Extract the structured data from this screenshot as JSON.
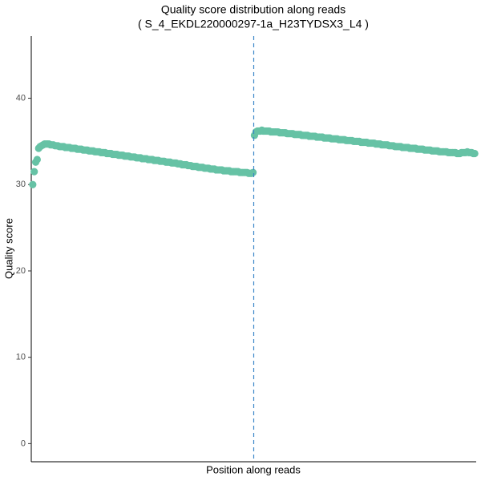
{
  "chart_data": {
    "type": "scatter",
    "title": "Quality score distribution along reads",
    "subtitle": "( S_4_EKDL220000297-1a_H23TYDSX3_L4 )",
    "x_label": "Position along reads",
    "y_label": "Quality score",
    "xlim": [
      0,
      301
    ],
    "ylim": [
      -2.1,
      47.2
    ],
    "yticks": [
      0,
      10,
      20,
      30,
      40
    ],
    "vline": 150.5,
    "vline_color": "#3a86c8",
    "grid": false,
    "series": [
      {
        "color": "#66c2a5",
        "x": [
          1,
          2,
          3,
          4,
          5,
          6,
          7,
          8,
          9,
          10,
          11,
          12,
          13,
          14,
          15,
          16,
          17,
          18,
          19,
          20,
          21,
          22,
          23,
          24,
          25,
          26,
          27,
          28,
          29,
          30,
          31,
          32,
          33,
          34,
          35,
          36,
          37,
          38,
          39,
          40,
          41,
          42,
          43,
          44,
          45,
          46,
          47,
          48,
          49,
          50,
          51,
          52,
          53,
          54,
          55,
          56,
          57,
          58,
          59,
          60,
          61,
          62,
          63,
          64,
          65,
          66,
          67,
          68,
          69,
          70,
          71,
          72,
          73,
          74,
          75,
          76,
          77,
          78,
          79,
          80,
          81,
          82,
          83,
          84,
          85,
          86,
          87,
          88,
          89,
          90,
          91,
          92,
          93,
          94,
          95,
          96,
          97,
          98,
          99,
          100,
          101,
          102,
          103,
          104,
          105,
          106,
          107,
          108,
          109,
          110,
          111,
          112,
          113,
          114,
          115,
          116,
          117,
          118,
          119,
          120,
          121,
          122,
          123,
          124,
          125,
          126,
          127,
          128,
          129,
          130,
          131,
          132,
          133,
          134,
          135,
          136,
          137,
          138,
          139,
          140,
          141,
          142,
          143,
          144,
          145,
          146,
          147,
          148,
          149,
          150,
          151,
          152,
          153,
          154,
          155,
          156,
          157,
          158,
          159,
          160,
          161,
          162,
          163,
          164,
          165,
          166,
          167,
          168,
          169,
          170,
          171,
          172,
          173,
          174,
          175,
          176,
          177,
          178,
          179,
          180,
          181,
          182,
          183,
          184,
          185,
          186,
          187,
          188,
          189,
          190,
          191,
          192,
          193,
          194,
          195,
          196,
          197,
          198,
          199,
          200,
          201,
          202,
          203,
          204,
          205,
          206,
          207,
          208,
          209,
          210,
          211,
          212,
          213,
          214,
          215,
          216,
          217,
          218,
          219,
          220,
          221,
          222,
          223,
          224,
          225,
          226,
          227,
          228,
          229,
          230,
          231,
          232,
          233,
          234,
          235,
          236,
          237,
          238,
          239,
          240,
          241,
          242,
          243,
          244,
          245,
          246,
          247,
          248,
          249,
          250,
          251,
          252,
          253,
          254,
          255,
          256,
          257,
          258,
          259,
          260,
          261,
          262,
          263,
          264,
          265,
          266,
          267,
          268,
          269,
          270,
          271,
          272,
          273,
          274,
          275,
          276,
          277,
          278,
          279,
          280,
          281,
          282,
          283,
          284,
          285,
          286,
          287,
          288,
          289,
          290,
          291,
          292,
          293,
          294,
          295,
          296,
          297,
          298,
          299,
          300
        ],
        "values": [
          30.0,
          31.5,
          32.6,
          32.9,
          34.2,
          34.4,
          34.5,
          34.6,
          34.7,
          34.7,
          34.7,
          34.7,
          34.6,
          34.6,
          34.6,
          34.5,
          34.5,
          34.5,
          34.4,
          34.4,
          34.4,
          34.4,
          34.3,
          34.3,
          34.3,
          34.3,
          34.2,
          34.2,
          34.2,
          34.2,
          34.1,
          34.1,
          34.1,
          34.1,
          34.0,
          34.0,
          34.0,
          34.0,
          33.9,
          33.9,
          33.9,
          33.9,
          33.8,
          33.8,
          33.8,
          33.8,
          33.7,
          33.7,
          33.7,
          33.7,
          33.6,
          33.6,
          33.6,
          33.6,
          33.5,
          33.5,
          33.5,
          33.5,
          33.4,
          33.4,
          33.4,
          33.4,
          33.3,
          33.3,
          33.3,
          33.3,
          33.2,
          33.2,
          33.2,
          33.2,
          33.1,
          33.1,
          33.1,
          33.1,
          33.0,
          33.0,
          33.0,
          33.0,
          32.9,
          32.9,
          32.9,
          32.9,
          32.8,
          32.8,
          32.8,
          32.8,
          32.7,
          32.7,
          32.7,
          32.7,
          32.6,
          32.6,
          32.6,
          32.6,
          32.5,
          32.5,
          32.5,
          32.5,
          32.4,
          32.4,
          32.4,
          32.3,
          32.3,
          32.3,
          32.3,
          32.2,
          32.2,
          32.2,
          32.1,
          32.1,
          32.1,
          32.1,
          32.0,
          32.0,
          32.0,
          32.0,
          31.9,
          31.9,
          31.9,
          31.9,
          31.8,
          31.8,
          31.8,
          31.8,
          31.7,
          31.7,
          31.7,
          31.7,
          31.7,
          31.6,
          31.6,
          31.6,
          31.6,
          31.6,
          31.5,
          31.5,
          31.5,
          31.5,
          31.5,
          31.5,
          31.4,
          31.4,
          31.4,
          31.4,
          31.4,
          31.4,
          31.3,
          31.3,
          31.3,
          31.4,
          35.7,
          36.1,
          36.2,
          36.2,
          36.2,
          36.3,
          36.2,
          36.2,
          36.2,
          36.2,
          36.2,
          36.1,
          36.1,
          36.1,
          36.1,
          36.1,
          36.1,
          36.0,
          36.0,
          36.0,
          36.0,
          36.0,
          35.9,
          35.9,
          35.9,
          35.9,
          35.9,
          35.8,
          35.8,
          35.8,
          35.8,
          35.8,
          35.7,
          35.7,
          35.7,
          35.7,
          35.7,
          35.6,
          35.6,
          35.6,
          35.6,
          35.6,
          35.5,
          35.5,
          35.5,
          35.5,
          35.5,
          35.4,
          35.4,
          35.4,
          35.4,
          35.4,
          35.3,
          35.3,
          35.3,
          35.3,
          35.3,
          35.2,
          35.2,
          35.2,
          35.2,
          35.2,
          35.1,
          35.1,
          35.1,
          35.1,
          35.1,
          35.0,
          35.0,
          35.0,
          35.0,
          35.0,
          34.9,
          34.9,
          34.9,
          34.9,
          34.9,
          34.8,
          34.8,
          34.8,
          34.8,
          34.8,
          34.7,
          34.7,
          34.7,
          34.7,
          34.6,
          34.6,
          34.6,
          34.6,
          34.6,
          34.5,
          34.5,
          34.5,
          34.5,
          34.4,
          34.4,
          34.4,
          34.4,
          34.4,
          34.3,
          34.3,
          34.3,
          34.3,
          34.3,
          34.2,
          34.2,
          34.2,
          34.2,
          34.2,
          34.1,
          34.1,
          34.1,
          34.1,
          34.1,
          34.0,
          34.0,
          34.0,
          34.0,
          34.0,
          33.9,
          33.9,
          33.9,
          33.9,
          33.9,
          33.8,
          33.8,
          33.8,
          33.8,
          33.8,
          33.8,
          33.7,
          33.7,
          33.7,
          33.7,
          33.7,
          33.7,
          33.6,
          33.6,
          33.6,
          33.7,
          33.7,
          33.7,
          33.7,
          33.8,
          33.7,
          33.7,
          33.7,
          33.6,
          33.6
        ]
      }
    ]
  }
}
